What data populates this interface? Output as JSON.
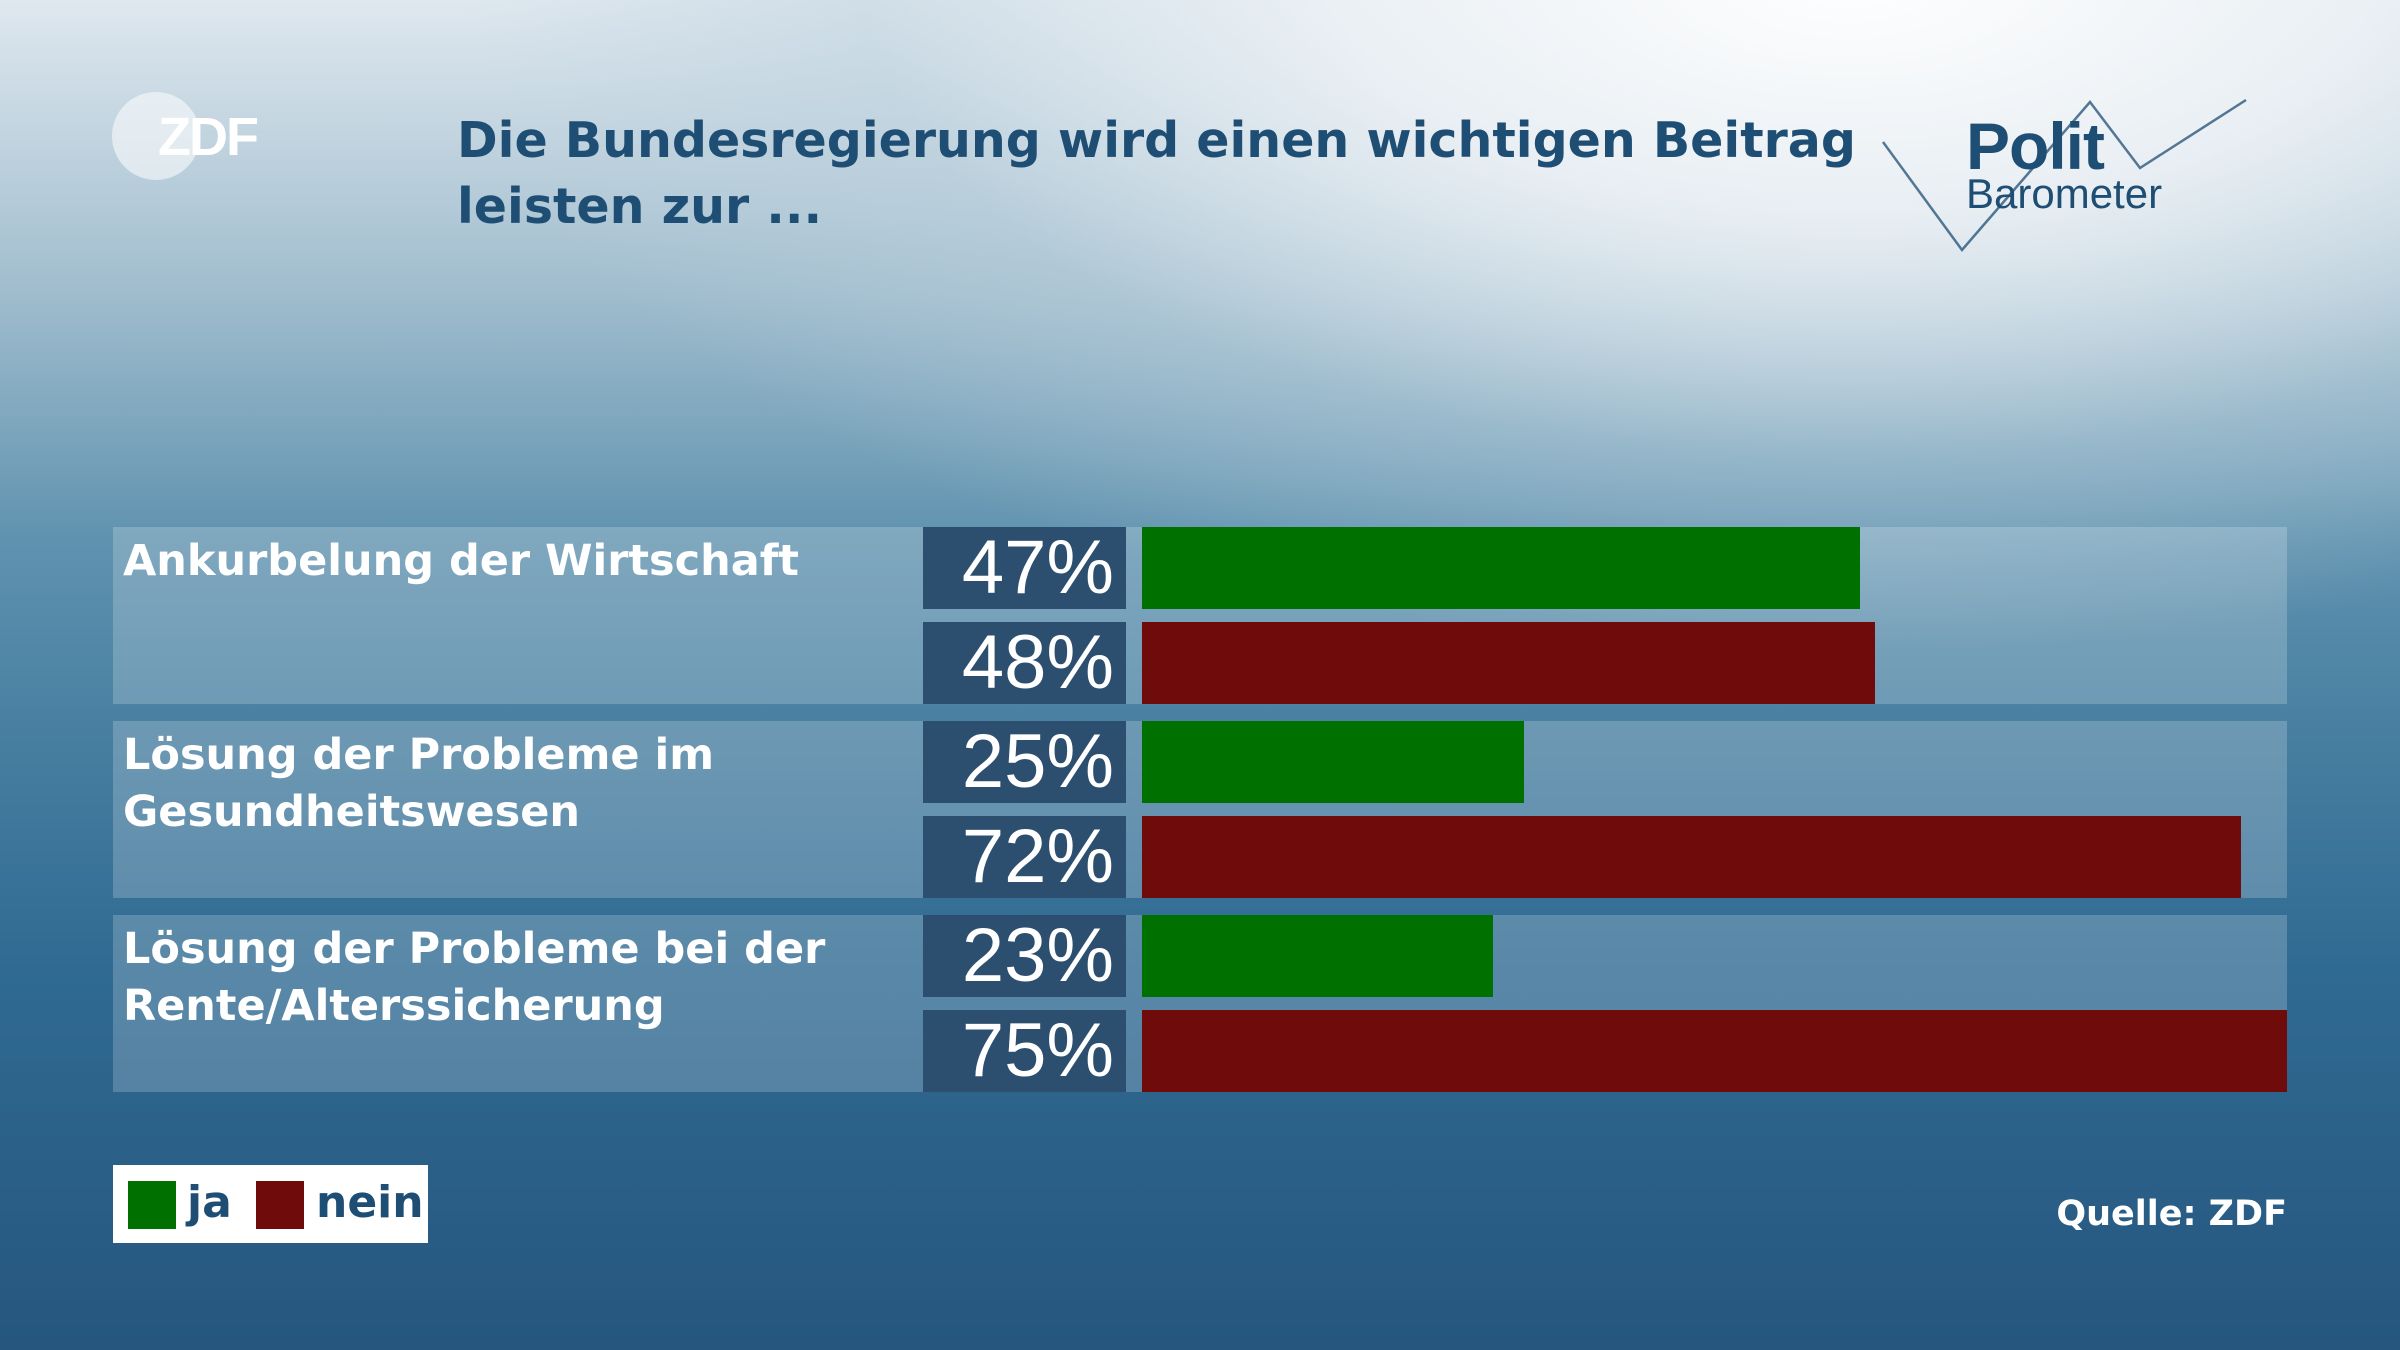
{
  "brand": {
    "zdf_logo": "ZDF",
    "politbarometer_line1": "Polit",
    "politbarometer_line2": "Barometer"
  },
  "title_lines": [
    "Die Bundesregierung wird einen wichtigen Beitrag",
    "leisten zur ..."
  ],
  "source": "Quelle: ZDF",
  "colors": {
    "ja": "#007000",
    "nein": "#6f0b0b",
    "title": "#1f4e74"
  },
  "chart_data": {
    "type": "bar",
    "orientation": "horizontal",
    "xlim": [
      0,
      75
    ],
    "categories": [
      "Ankurbelung der Wirtschaft",
      "Lösung der Probleme im\nGesundheitswesen",
      "Lösung der Probleme bei der\nRente/Alterssicherung"
    ],
    "series": [
      {
        "name": "ja",
        "color": "#007000",
        "values": [
          47,
          25,
          23
        ],
        "labels": [
          "47%",
          "25%",
          "23%"
        ]
      },
      {
        "name": "nein",
        "color": "#6f0b0b",
        "values": [
          48,
          72,
          75
        ],
        "labels": [
          "48%",
          "72%",
          "75%"
        ]
      }
    ],
    "legend_placement": "bottom-left"
  }
}
